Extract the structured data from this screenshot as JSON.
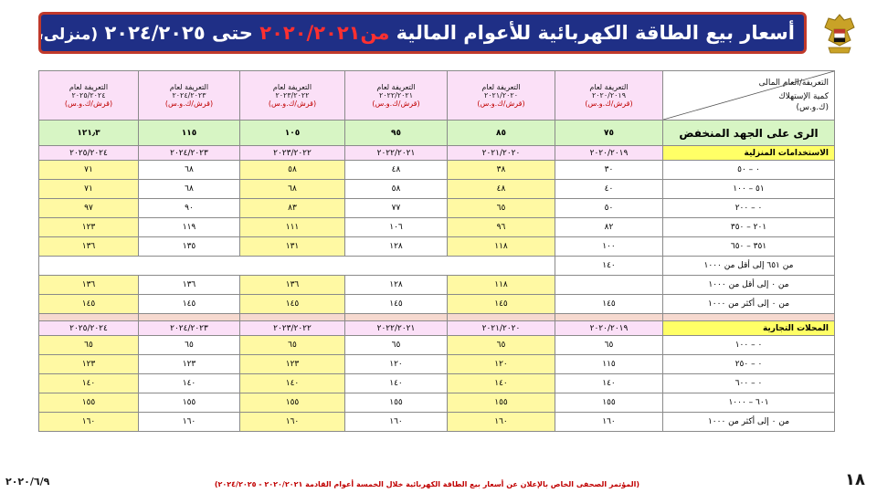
{
  "title": {
    "main": "أسعار بيع الطاقة الكهربائية للأعوام المالية ",
    "highlight": "من٢٠٢٠/٢٠٢١ ",
    "mid": "حتى ٢٠٢٤/٢٠٢٥ ",
    "suffix": "(منزلى، تجارى)"
  },
  "colors": {
    "banner": "#1f2f86",
    "border": "#c0392b",
    "highlight": "#ff3030",
    "header_pink": "#fbe0f7",
    "avg_green": "#d7f5c4",
    "yellow": "#fff9a3"
  },
  "logo_icon": "egypt-eagle-emblem",
  "header": {
    "corner_top": "التعريفة/العام المالى",
    "corner_bottom": "كمية الإستهلاك\n(ك.و.س)",
    "years": [
      {
        "t1": "التعريفة لعام",
        "t2": "٢٠٢٠/٢٠١٩",
        "t3": "(قرش/ك.و.س)"
      },
      {
        "t1": "التعريفة لعام",
        "t2": "٢٠٢١/٢٠٢٠",
        "t3": "(قرش/ك.و.س)"
      },
      {
        "t1": "التعريفة لعام",
        "t2": "٢٠٢٢/٢٠٢١",
        "t3": "(قرش/ك.و.س)"
      },
      {
        "t1": "التعريفة لعام",
        "t2": "٢٠٢٣/٢٠٢٢",
        "t3": "(قرش/ك.و.س)"
      },
      {
        "t1": "التعريفة لعام",
        "t2": "٢٠٢٤/٢٠٢٣",
        "t3": "(قرش/ك.و.س)"
      },
      {
        "t1": "التعريفة لعام",
        "t2": "٢٠٢٥/٢٠٢٤",
        "t3": "(قرش/ك.و.س)"
      }
    ]
  },
  "average_row": {
    "label": "الرى على الجهد المنخفض",
    "values": [
      "٧٥",
      "٨٥",
      "٩٥",
      "١٠٥",
      "١١٥",
      "١٢١٫٣"
    ]
  },
  "residential": {
    "label": "الاستخدامات المنزلية",
    "years": [
      "٢٠٢٠/٢٠١٩",
      "٢٠٢١/٢٠٢٠",
      "٢٠٢٢/٢٠٢١",
      "٢٠٢٣/٢٠٢٢",
      "٢٠٢٤/٢٠٢٣",
      "٢٠٢٥/٢٠٢٤"
    ],
    "rows": [
      {
        "label": "٠ – ٥٠",
        "values": [
          "٣٠",
          "٣٨",
          "٤٨",
          "٥٨",
          "٦٨",
          "٧١"
        ]
      },
      {
        "label": "٥١ – ١٠٠",
        "values": [
          "٤٠",
          "٤٨",
          "٥٨",
          "٦٨",
          "٦٨",
          "٧١"
        ]
      },
      {
        "label": "٠ – ٢٠٠",
        "values": [
          "٥٠",
          "٦٥",
          "٧٧",
          "٨٣",
          "٩٠",
          "٩٧"
        ]
      },
      {
        "label": "٢٠١ – ٣٥٠",
        "values": [
          "٨٢",
          "٩٦",
          "١٠٦",
          "١١١",
          "١١٩",
          "١٢٣"
        ]
      },
      {
        "label": "٣٥١ – ٦٥٠",
        "values": [
          "١٠٠",
          "١١٨",
          "١٢٨",
          "١٣١",
          "١٣٥",
          "١٣٦"
        ]
      },
      {
        "label": "من ٦٥١ إلى أقل من ١٠٠٠",
        "values": [
          "١٤٠",
          "",
          "",
          "",
          "",
          ""
        ]
      },
      {
        "label": "من ٠ إلى أقل من ١٠٠٠",
        "values": [
          "",
          "١١٨",
          "١٢٨",
          "١٣٦",
          "١٣٦",
          "١٣٦"
        ]
      },
      {
        "label": "من ٠ إلى أكثر من ١٠٠٠",
        "values": [
          "١٤٥",
          "١٤٥",
          "١٤٥",
          "١٤٥",
          "١٤٥",
          "١٤٥"
        ]
      }
    ]
  },
  "commercial": {
    "label": "المحلات التجارية",
    "years": [
      "٢٠٢٠/٢٠١٩",
      "٢٠٢١/٢٠٢٠",
      "٢٠٢٢/٢٠٢١",
      "٢٠٢٣/٢٠٢٢",
      "٢٠٢٤/٢٠٢٣",
      "٢٠٢٥/٢٠٢٤"
    ],
    "rows": [
      {
        "label": "٠ – ١٠٠",
        "values": [
          "٦٥",
          "٦٥",
          "٦٥",
          "٦٥",
          "٦٥",
          "٦٥"
        ]
      },
      {
        "label": "٠ – ٢٥٠",
        "values": [
          "١١٥",
          "١٢٠",
          "١٢٠",
          "١٢٣",
          "١٢٣",
          "١٢٣"
        ]
      },
      {
        "label": "٠ – ٦٠٠",
        "values": [
          "١٤٠",
          "١٤٠",
          "١٤٠",
          "١٤٠",
          "١٤٠",
          "١٤٠"
        ]
      },
      {
        "label": "٦٠١ – ١٠٠٠",
        "values": [
          "١٥٥",
          "١٥٥",
          "١٥٥",
          "١٥٥",
          "١٥٥",
          "١٥٥"
        ]
      },
      {
        "label": "من ٠ إلى أكثر من ١٠٠٠",
        "values": [
          "١٦٠",
          "١٦٠",
          "١٦٠",
          "١٦٠",
          "١٦٠",
          "١٦٠"
        ]
      }
    ]
  },
  "footer": {
    "date": "٢٠٢٠/٦/٩",
    "note": "(المؤتمر الصحفى الخاص بالإعلان عن أسعار بيع الطاقة الكهربائية خلال الخمسة أعوام القادمة ٢٠٢٠/٢٠٢١ - ٢٠٢٤/٢٠٢٥)",
    "page": "١٨"
  }
}
